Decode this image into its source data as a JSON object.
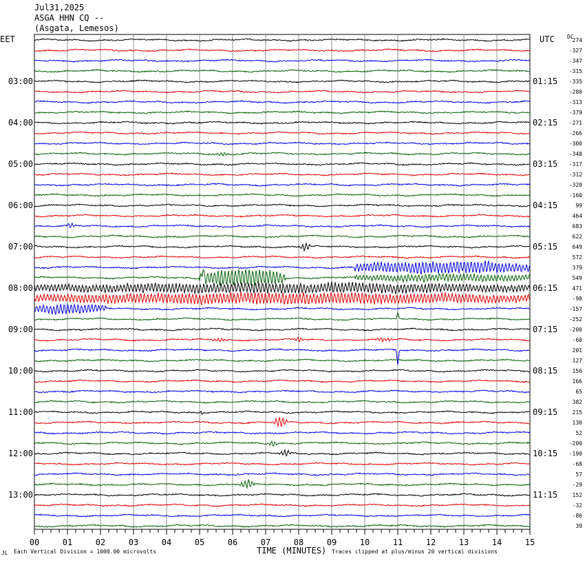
{
  "header": {
    "date": "Jul31,2025",
    "station": "ASGA HHN CQ --",
    "location": "(Asgata, Lemesos)"
  },
  "left_zone": "EET",
  "right_zone": "UTC",
  "dc_heading": "DC",
  "footer": {
    "left_mark": "JL",
    "scale_note": "Each Vertical Division = 1000.00 microvolts",
    "clip_note": "Traces clipped at plus/minus 20 vertical divisions"
  },
  "chart_data": {
    "type": "line",
    "title": "",
    "xlabel": "TIME (MINUTES)",
    "xlim": [
      0,
      15
    ],
    "x_ticks": [
      "00",
      "01",
      "02",
      "03",
      "04",
      "05",
      "06",
      "07",
      "08",
      "09",
      "10",
      "11",
      "12",
      "13",
      "14",
      "15"
    ],
    "trace_colors": [
      "#000000",
      "#e00000",
      "#0000e0",
      "#006000"
    ],
    "left_hour_labels": [
      "03:00",
      "04:00",
      "05:00",
      "06:00",
      "07:00",
      "08:00",
      "09:00",
      "10:00",
      "11:00",
      "12:00",
      "13:00"
    ],
    "right_hour_labels": [
      "01:15",
      "02:15",
      "03:15",
      "04:15",
      "05:15",
      "06:15",
      "07:15",
      "08:15",
      "09:15",
      "10:15",
      "11:15"
    ],
    "dc_offsets": [
      "274",
      "-327",
      "-347",
      "-315",
      "-335",
      "-280",
      "-313",
      "-379",
      "-271",
      "-266",
      "-300",
      "-348",
      "-317",
      "-312",
      "-320",
      "-160",
      "99",
      "464",
      "683",
      "622",
      "649",
      "572",
      "379",
      "549",
      "471",
      "-98",
      "-157",
      "-252",
      "-200",
      "-60",
      "201",
      "127",
      "156",
      "166",
      "65",
      "382",
      "215",
      "130",
      "52",
      "-200",
      "-190",
      "-68",
      "57",
      "-29",
      "152",
      "-32",
      "-86",
      "39"
    ]
  }
}
